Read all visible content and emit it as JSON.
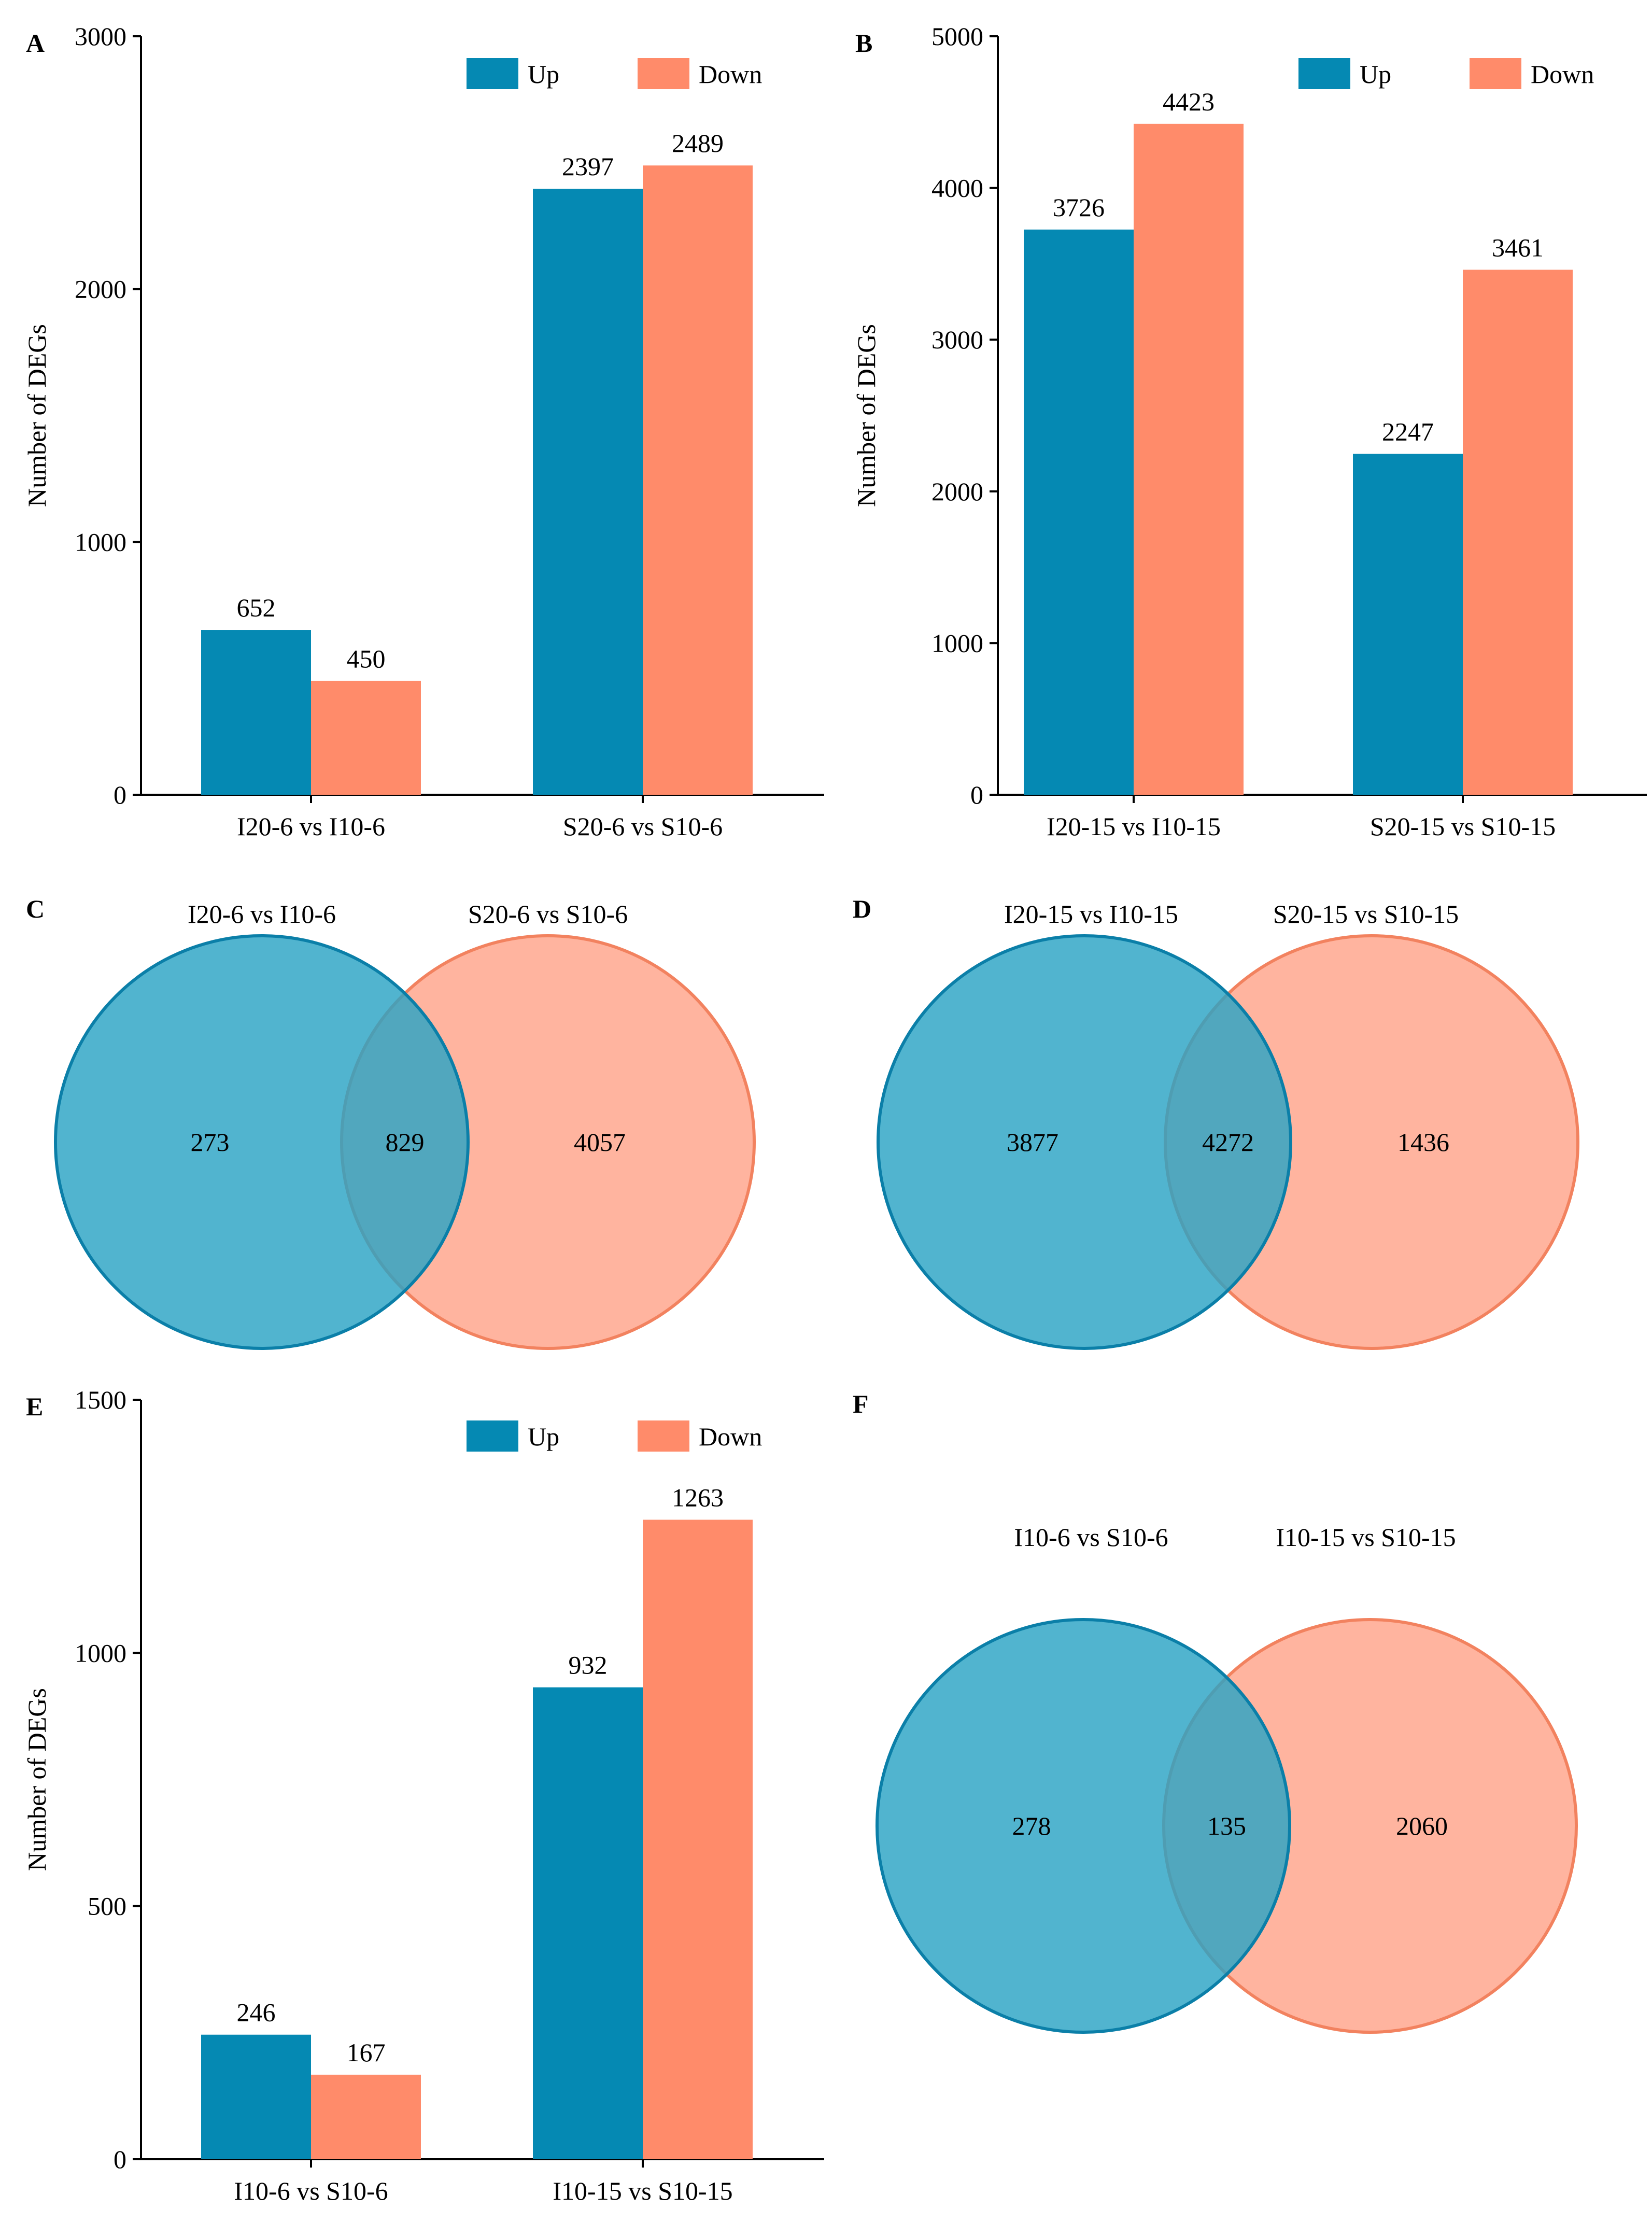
{
  "colors": {
    "up": "#0589b3",
    "down": "#ff8b6a",
    "venn_left": "#2ba4c5",
    "venn_right": "#ff9f84",
    "venn_left_stroke": "#0b7fa8",
    "venn_right_stroke": "#f2825f"
  },
  "chart_data": [
    {
      "panel": "A",
      "type": "bar",
      "ylabel": "Number of DEGs",
      "categories": [
        "I20-6 vs I10-6",
        "S20-6 vs S10-6"
      ],
      "ylim": [
        0,
        3000
      ],
      "yticks": [
        0,
        1000,
        2000,
        3000
      ],
      "legend": [
        "Up",
        "Down"
      ],
      "legend_position": "top-right",
      "series": [
        {
          "name": "Up",
          "values": [
            652,
            2397
          ]
        },
        {
          "name": "Down",
          "values": [
            450,
            2489
          ]
        }
      ]
    },
    {
      "panel": "B",
      "type": "bar",
      "ylabel": "Number of DEGs",
      "categories": [
        "I20-15 vs I10-15",
        "S20-15 vs S10-15"
      ],
      "ylim": [
        0,
        5000
      ],
      "yticks": [
        0,
        1000,
        2000,
        3000,
        4000,
        5000
      ],
      "legend": [
        "Up",
        "Down"
      ],
      "legend_position": "top-right",
      "series": [
        {
          "name": "Up",
          "values": [
            3726,
            2247
          ]
        },
        {
          "name": "Down",
          "values": [
            4423,
            3461
          ]
        }
      ]
    },
    {
      "panel": "E",
      "type": "bar",
      "ylabel": "Number of DEGs",
      "categories": [
        "I10-6 vs S10-6",
        "I10-15 vs S10-15"
      ],
      "ylim": [
        0,
        1500
      ],
      "yticks": [
        0,
        500,
        1000,
        1500
      ],
      "legend": [
        "Up",
        "Down"
      ],
      "legend_position": "top-right",
      "series": [
        {
          "name": "Up",
          "values": [
            246,
            932
          ]
        },
        {
          "name": "Down",
          "values": [
            167,
            1263
          ]
        }
      ]
    },
    {
      "panel": "C",
      "type": "venn",
      "sets": [
        "I20-6 vs I10-6",
        "S20-6 vs S10-6"
      ],
      "left_only": 273,
      "overlap": 829,
      "right_only": 4057
    },
    {
      "panel": "D",
      "type": "venn",
      "sets": [
        "I20-15 vs I10-15",
        "S20-15 vs S10-15"
      ],
      "left_only": 3877,
      "overlap": 4272,
      "right_only": 1436
    },
    {
      "panel": "F",
      "type": "venn",
      "sets": [
        "I10-6 vs S10-6",
        "I10-15 vs S10-15"
      ],
      "left_only": 278,
      "overlap": 135,
      "right_only": 2060
    }
  ]
}
